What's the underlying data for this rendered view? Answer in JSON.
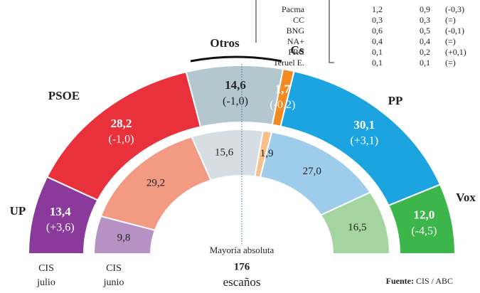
{
  "chart_data": {
    "type": "semi-donut",
    "categories": [
      "UP",
      "PSOE",
      "Otros",
      "Cs",
      "PP",
      "Vox"
    ],
    "series": [
      {
        "name": "CIS julio",
        "colors": [
          "#8a3a9b",
          "#e8313b",
          "#b3c7cf",
          "#f28a22",
          "#1ca4e0",
          "#3cb64b"
        ],
        "values": [
          13.4,
          28.2,
          14.6,
          1.7,
          30.1,
          12.0
        ],
        "value_labels": [
          "13,4",
          "28,2",
          "14,6",
          "1,7",
          "30,1",
          "12,0"
        ],
        "change_labels": [
          "(+3,6)",
          "(-1,0)",
          "(-1,0)",
          "(-0,2)",
          "(+3,1)",
          "(-4,5)"
        ]
      },
      {
        "name": "CIS junio",
        "colors": [
          "#b792c4",
          "#f39a82",
          "#d6dee3",
          "#f8c08b",
          "#9ecdec",
          "#a4d5a1"
        ],
        "values": [
          9.8,
          29.2,
          15.6,
          1.9,
          27.0,
          16.5
        ],
        "value_labels": [
          "9,8",
          "29,2",
          "15,6",
          "1,9",
          "27,0",
          "16,5"
        ]
      }
    ],
    "annotation": {
      "label": "Mayoría absoluta",
      "value": 176,
      "unit": "escaños"
    },
    "source_label": "Fuente:",
    "source": "CIS / ABC",
    "table": {
      "rows": [
        [
          "Pacma",
          "1,2",
          "0,9",
          "(-0,3)"
        ],
        [
          "CC",
          "0,3",
          "0,3",
          "(=)"
        ],
        [
          "BNG",
          "0,6",
          "0,5",
          "(-0,1)"
        ],
        [
          "NA+",
          "0,4",
          "0,4",
          "(=)"
        ],
        [
          "PRC",
          "0,1",
          "0,2",
          "(+0,1)"
        ],
        [
          "Teruel E.",
          "0,1",
          "0,1",
          "(=)"
        ]
      ]
    }
  }
}
